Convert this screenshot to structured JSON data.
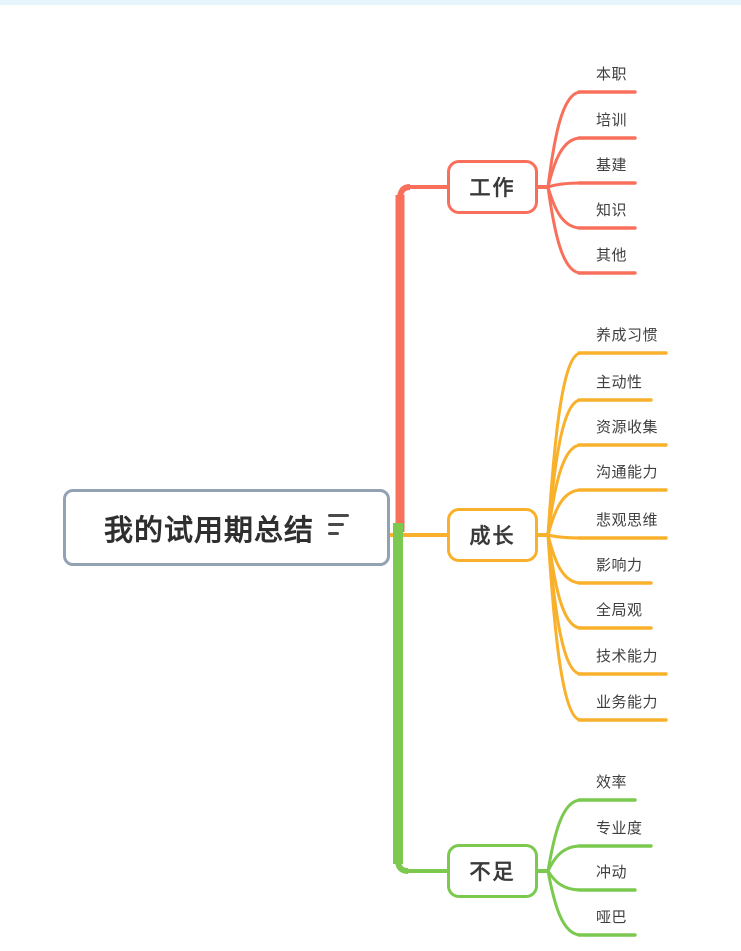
{
  "page": {
    "background": "#FFFFFF",
    "top_band_color": "#E6F4FC"
  },
  "mindmap": {
    "root": {
      "label": "我的试用期总结",
      "icon": "notes-icon",
      "border_color": "#93A1B5",
      "text_color": "#2F2F2F"
    },
    "branches": [
      {
        "label": "工作",
        "color": "#F8705C",
        "children": [
          "本职",
          "培训",
          "基建",
          "知识",
          "其他"
        ]
      },
      {
        "label": "成长",
        "color": "#F9B02B",
        "children": [
          "养成习惯",
          "主动性",
          "资源收集",
          "沟通能力",
          "悲观思维",
          "影响力",
          "全局观",
          "技术能力",
          "业务能力"
        ]
      },
      {
        "label": "不足",
        "color": "#7CC94F",
        "children": [
          "效率",
          "专业度",
          "冲动",
          "哑巴"
        ]
      }
    ]
  }
}
